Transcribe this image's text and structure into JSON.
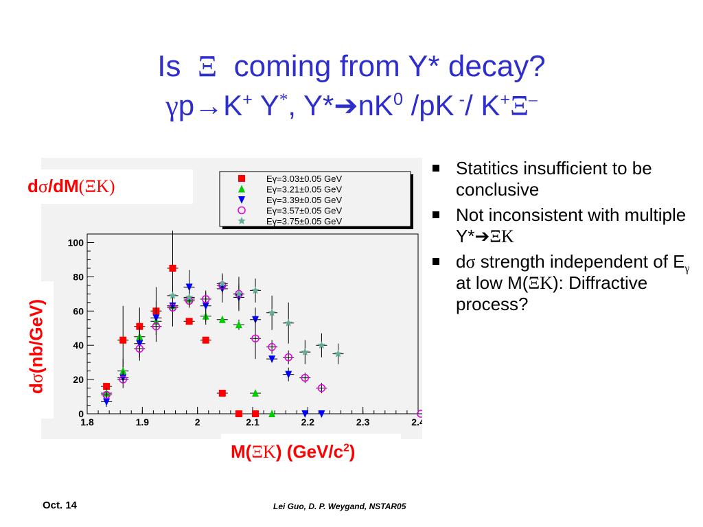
{
  "slide": {
    "title_line1_pre": "Is",
    "title_line1_sym": "Ξ",
    "title_line1_post": "coming from Y* decay?",
    "title_line2": {
      "gamma": "γ",
      "p_arrow": "p→K",
      "plus1": "+",
      "y": " Y",
      "star": "*",
      "comma": ", Y*",
      "arrow": "➔",
      "nk": "nK",
      "zero": "0",
      "pk": " /pK",
      "minus": " -",
      "slash_k": "/ K",
      "plus2": "+",
      "xi": "Ξ",
      "xi_minus": "–"
    },
    "bullets": [
      {
        "text": "Statitics insufficient to be conclusive"
      },
      {
        "pre": "Not inconsistent with multiple Y*",
        "arrow": "➔",
        "sym": "ΞK"
      },
      {
        "pre1": "d",
        "sigma": "σ",
        "pre2": " strength independent of E",
        "gamma": "γ",
        "pre3": " at low M(",
        "sym": "ΞK",
        "post": "): Diffractive process?"
      }
    ],
    "footer": {
      "date": "Oct. 14",
      "authors": "Lei Guo, D. P. Weygand, NSTAR05"
    },
    "labels": {
      "top": {
        "d": "d",
        "sigma": "σ",
        "mid": "/dM",
        "open": "(",
        "xk": "ΞK",
        "close": ")"
      },
      "y": {
        "d": "d",
        "sigma": "σ",
        "rest": "(nb/GeV)"
      },
      "x": {
        "m": "M(",
        "xk": "ΞK",
        "rest": ") (GeV/c",
        "sq": "2",
        "close": ")"
      }
    }
  },
  "chart_data": {
    "type": "scatter",
    "xlim": [
      1.8,
      2.4
    ],
    "ylim": [
      0,
      105
    ],
    "x_ticks": [
      "1.8",
      "1.9",
      "2",
      "2.1",
      "2.2",
      "2.3",
      "2.4"
    ],
    "y_ticks": [
      "0",
      "20",
      "40",
      "60",
      "80",
      "100"
    ],
    "legend_placement": "top",
    "series": [
      {
        "name": "Eγ=3.03±0.05 GeV",
        "marker": "square",
        "color": "#ff0000",
        "points": [
          {
            "x": 1.835,
            "y": 16,
            "yerr": 2
          },
          {
            "x": 1.865,
            "y": 43,
            "yerr": 20
          },
          {
            "x": 1.895,
            "y": 51,
            "yerr": 11
          },
          {
            "x": 1.925,
            "y": 60,
            "yerr": 14
          },
          {
            "x": 1.955,
            "y": 85,
            "yerr": 22
          },
          {
            "x": 1.985,
            "y": 54,
            "yerr": 2
          },
          {
            "x": 2.015,
            "y": 43,
            "yerr": 2
          },
          {
            "x": 2.045,
            "y": 12,
            "yerr": 2
          },
          {
            "x": 2.075,
            "y": 0,
            "yerr": 0
          },
          {
            "x": 2.105,
            "y": 0,
            "yerr": 0
          }
        ]
      },
      {
        "name": "Eγ=3.21±0.05 GeV",
        "marker": "triangle-up",
        "color": "#00cc00",
        "points": [
          {
            "x": 1.835,
            "y": 12,
            "yerr": 3
          },
          {
            "x": 1.865,
            "y": 25,
            "yerr": 7
          },
          {
            "x": 1.895,
            "y": 45,
            "yerr": 6
          },
          {
            "x": 1.925,
            "y": 54,
            "yerr": 12
          },
          {
            "x": 1.955,
            "y": 63,
            "yerr": 12
          },
          {
            "x": 1.985,
            "y": 67,
            "yerr": 5
          },
          {
            "x": 2.015,
            "y": 57,
            "yerr": 5
          },
          {
            "x": 2.045,
            "y": 55,
            "yerr": 2
          },
          {
            "x": 2.075,
            "y": 52,
            "yerr": 3
          },
          {
            "x": 2.105,
            "y": 12,
            "yerr": 1
          },
          {
            "x": 2.135,
            "y": 0,
            "yerr": 0
          }
        ]
      },
      {
        "name": "Eγ=3.39±0.05 GeV",
        "marker": "triangle-down",
        "color": "#0000ff",
        "points": [
          {
            "x": 1.835,
            "y": 7,
            "yerr": 3
          },
          {
            "x": 1.865,
            "y": 21,
            "yerr": 3
          },
          {
            "x": 1.895,
            "y": 41,
            "yerr": 8
          },
          {
            "x": 1.925,
            "y": 56,
            "yerr": 6
          },
          {
            "x": 1.955,
            "y": 63,
            "yerr": 8
          },
          {
            "x": 1.985,
            "y": 74,
            "yerr": 10
          },
          {
            "x": 2.015,
            "y": 63,
            "yerr": 9
          },
          {
            "x": 2.045,
            "y": 73,
            "yerr": 8
          },
          {
            "x": 2.075,
            "y": 68,
            "yerr": 7
          },
          {
            "x": 2.105,
            "y": 55,
            "yerr": 7
          },
          {
            "x": 2.135,
            "y": 32,
            "yerr": 2
          },
          {
            "x": 2.165,
            "y": 23,
            "yerr": 4
          },
          {
            "x": 2.195,
            "y": 0,
            "yerr": 0
          },
          {
            "x": 2.225,
            "y": 0,
            "yerr": 0
          }
        ]
      },
      {
        "name": "Eγ=3.57±0.05 GeV",
        "marker": "circle-open",
        "color": "#dd00dd",
        "points": [
          {
            "x": 1.835,
            "y": 11,
            "yerr": 2
          },
          {
            "x": 1.865,
            "y": 20,
            "yerr": 5
          },
          {
            "x": 1.895,
            "y": 38,
            "yerr": 7
          },
          {
            "x": 1.925,
            "y": 51,
            "yerr": 5
          },
          {
            "x": 1.955,
            "y": 62,
            "yerr": 5
          },
          {
            "x": 1.985,
            "y": 66,
            "yerr": 4
          },
          {
            "x": 2.015,
            "y": 67,
            "yerr": 4
          },
          {
            "x": 2.045,
            "y": 75,
            "yerr": 4
          },
          {
            "x": 2.075,
            "y": 70,
            "yerr": 6
          },
          {
            "x": 2.105,
            "y": 44,
            "yerr": 12
          },
          {
            "x": 2.135,
            "y": 39,
            "yerr": 4
          },
          {
            "x": 2.165,
            "y": 33,
            "yerr": 4
          },
          {
            "x": 2.195,
            "y": 21,
            "yerr": 3
          },
          {
            "x": 2.225,
            "y": 15,
            "yerr": 3
          },
          {
            "x": 2.405,
            "y": 0,
            "yerr": 0
          }
        ]
      },
      {
        "name": "Eγ=3.75±0.05 GeV",
        "marker": "star",
        "color": "#66aa99",
        "points": [
          {
            "x": 1.955,
            "y": 69,
            "yerr": 6
          },
          {
            "x": 1.985,
            "y": 68,
            "yerr": 5
          },
          {
            "x": 2.045,
            "y": 76,
            "yerr": 6
          },
          {
            "x": 2.075,
            "y": 70,
            "yerr": 10
          },
          {
            "x": 2.105,
            "y": 72,
            "yerr": 7
          },
          {
            "x": 2.135,
            "y": 59,
            "yerr": 10
          },
          {
            "x": 2.165,
            "y": 53,
            "yerr": 12
          },
          {
            "x": 2.195,
            "y": 36,
            "yerr": 7
          },
          {
            "x": 2.225,
            "y": 40,
            "yerr": 7
          },
          {
            "x": 2.255,
            "y": 35,
            "yerr": 6
          }
        ]
      }
    ]
  }
}
